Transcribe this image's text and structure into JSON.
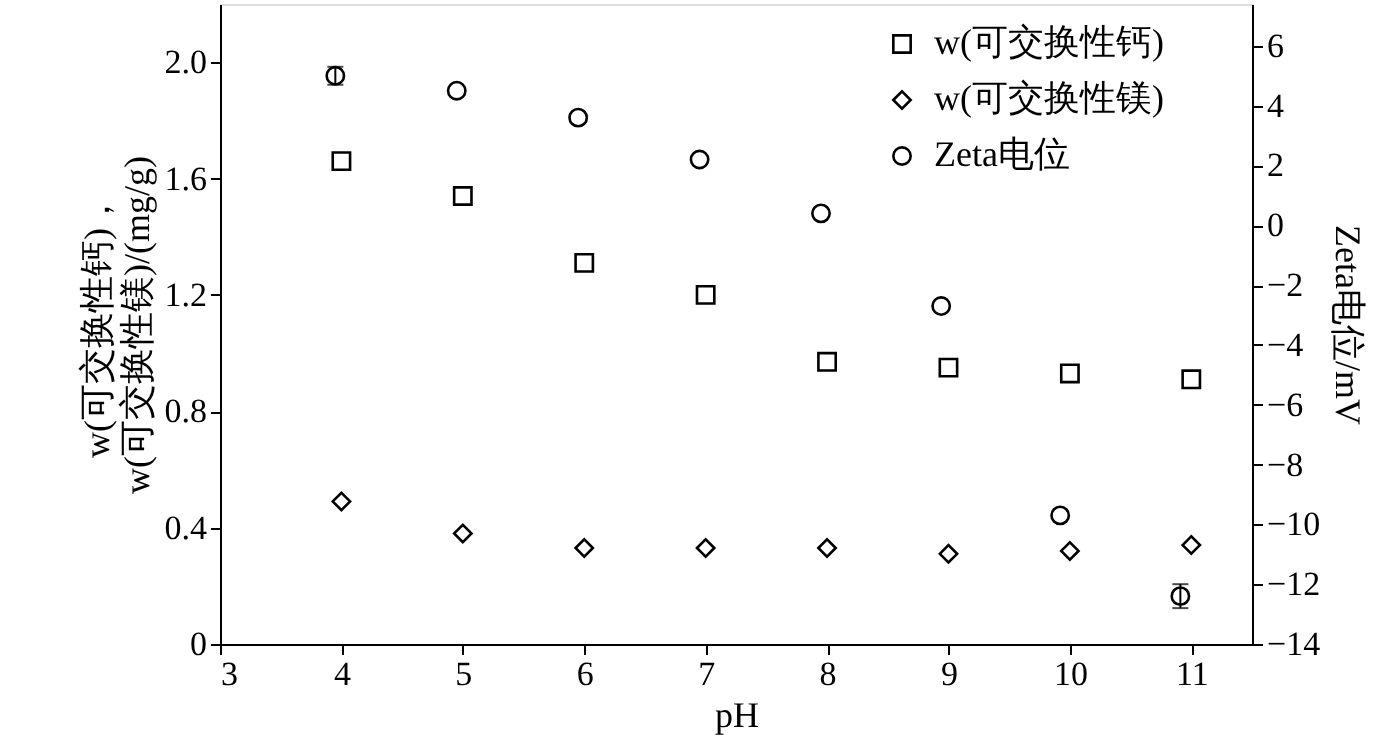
{
  "chart_data": {
    "type": "scatter",
    "xlabel": "pH",
    "ylabel": "w(可交换性钙)，\nw(可交换性镁)/(mg/g)",
    "y2label": "Zeta电位/mV",
    "xlim": [
      3,
      11.5
    ],
    "xticks": [
      3,
      4,
      5,
      6,
      7,
      8,
      9,
      10,
      11
    ],
    "ylim": [
      0,
      2.2
    ],
    "yticks": [
      0,
      0.4,
      0.8,
      1.2,
      1.6,
      {
        "value": 2.0,
        "label": "2.0"
      }
    ],
    "y2lim": [
      -14,
      7.4
    ],
    "y2ticks": [
      -14,
      -12,
      -10,
      -8,
      -6,
      -4,
      -2,
      0,
      2,
      4,
      6
    ],
    "grid": false,
    "legend": "top right",
    "series": [
      {
        "name": "w(可交换性钙)",
        "color": "#000000",
        "marker": "square",
        "x": [
          4,
          5,
          6,
          7,
          8,
          9,
          10,
          11
        ],
        "values": [
          1.66,
          1.54,
          1.31,
          1.2,
          0.97,
          0.95,
          0.93,
          0.91
        ]
      },
      {
        "name": "w(可交换性镁)",
        "color": "#000000",
        "marker": "diamond",
        "x": [
          4,
          5,
          6,
          7,
          8,
          9,
          10,
          11
        ],
        "values": [
          0.49,
          0.38,
          0.33,
          0.33,
          0.33,
          0.31,
          0.32,
          0.34
        ]
      },
      {
        "name": "Zeta电位",
        "color": "#000000",
        "marker": "circle",
        "axis": "y2",
        "x": [
          3.95,
          4.95,
          5.95,
          6.95,
          7.95,
          8.94,
          9.92,
          10.91
        ],
        "values": [
          5.0,
          4.5,
          3.6,
          2.2,
          0.4,
          -2.7,
          -9.7,
          -12.4
        ],
        "errors": [
          0.3,
          null,
          null,
          null,
          null,
          null,
          null,
          0.4
        ]
      }
    ]
  }
}
